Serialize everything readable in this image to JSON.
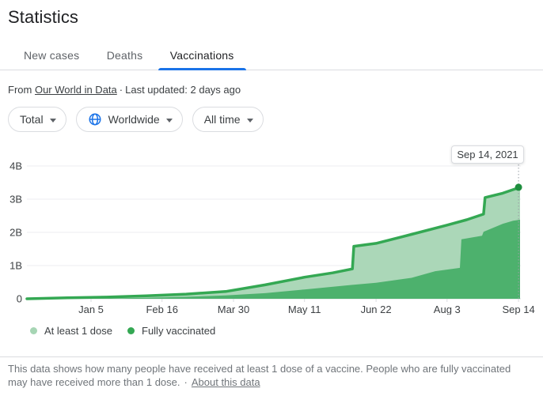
{
  "header": {
    "title": "Statistics"
  },
  "tabs": [
    {
      "label": "New cases",
      "active": false
    },
    {
      "label": "Deaths",
      "active": false
    },
    {
      "label": "Vaccinations",
      "active": true
    }
  ],
  "source": {
    "prefix": "From",
    "link": "Our World in Data",
    "separator": "·",
    "updated": "Last updated: 2 days ago"
  },
  "filters": [
    {
      "label": "Total"
    },
    {
      "label": "Worldwide",
      "icon": "globe-icon"
    },
    {
      "label": "All time"
    }
  ],
  "chart_data": {
    "type": "area",
    "ylim": [
      0,
      4
    ],
    "grid": true,
    "yticks": [
      {
        "v": 0,
        "label": "0"
      },
      {
        "v": 1,
        "label": "1B"
      },
      {
        "v": 2,
        "label": "2B"
      },
      {
        "v": 3,
        "label": "3B"
      },
      {
        "v": 4,
        "label": "4B"
      }
    ],
    "xticks": [
      {
        "t": 0.13,
        "label": "Jan 5"
      },
      {
        "t": 0.274,
        "label": "Feb 16"
      },
      {
        "t": 0.419,
        "label": "Mar 30"
      },
      {
        "t": 0.563,
        "label": "May 11"
      },
      {
        "t": 0.708,
        "label": "Jun 22"
      },
      {
        "t": 0.852,
        "label": "Aug 3"
      },
      {
        "t": 0.997,
        "label": "Sep 14"
      }
    ],
    "series": [
      {
        "name": "At least 1 dose",
        "fill": "#abd7b8",
        "line": "#34a853",
        "line_width": 3.5,
        "points": [
          [
            0.0,
            0.0
          ],
          [
            0.082,
            0.03
          ],
          [
            0.162,
            0.05
          ],
          [
            0.242,
            0.09
          ],
          [
            0.323,
            0.14
          ],
          [
            0.403,
            0.22
          ],
          [
            0.483,
            0.42
          ],
          [
            0.563,
            0.65
          ],
          [
            0.62,
            0.78
          ],
          [
            0.66,
            0.9
          ],
          [
            0.663,
            1.58
          ],
          [
            0.708,
            1.67
          ],
          [
            0.78,
            1.94
          ],
          [
            0.852,
            2.22
          ],
          [
            0.892,
            2.38
          ],
          [
            0.926,
            2.55
          ],
          [
            0.929,
            3.05
          ],
          [
            0.965,
            3.18
          ],
          [
            1.0,
            3.36
          ]
        ]
      },
      {
        "name": "Fully vaccinated",
        "fill": "#4db16d",
        "line": null,
        "points": [
          [
            0.0,
            0.0
          ],
          [
            0.162,
            0.01
          ],
          [
            0.242,
            0.03
          ],
          [
            0.323,
            0.06
          ],
          [
            0.403,
            0.1
          ],
          [
            0.483,
            0.17
          ],
          [
            0.563,
            0.28
          ],
          [
            0.66,
            0.42
          ],
          [
            0.708,
            0.48
          ],
          [
            0.78,
            0.63
          ],
          [
            0.828,
            0.83
          ],
          [
            0.878,
            0.93
          ],
          [
            0.881,
            1.79
          ],
          [
            0.923,
            1.9
          ],
          [
            0.926,
            2.02
          ],
          [
            0.965,
            2.26
          ],
          [
            0.986,
            2.35
          ],
          [
            1.0,
            2.38
          ]
        ]
      }
    ],
    "tooltip": {
      "label": "Sep 14, 2021",
      "t": 0.997
    },
    "end_dot": {
      "t": 0.997,
      "v": 3.36,
      "color": "#1e8e3e"
    },
    "legend_position": "bottom"
  },
  "legend": [
    {
      "label": "At least 1 dose",
      "color": "#a6d5b4"
    },
    {
      "label": "Fully vaccinated",
      "color": "#34a853"
    }
  ],
  "footer": {
    "text": "This data shows how many people have received at least 1 dose of a vaccine. People who are fully vaccinated may have received more than 1 dose.",
    "separator": "·",
    "link": "About this data"
  },
  "colors": {
    "accent_blue": "#1a73e8",
    "tab_active_underline": "#1a73e8",
    "globe_icon": "#1a73e8",
    "gridline": "#eceef0",
    "axis_line": "#dadce0",
    "dotted_guide": "#9aa0a6"
  }
}
